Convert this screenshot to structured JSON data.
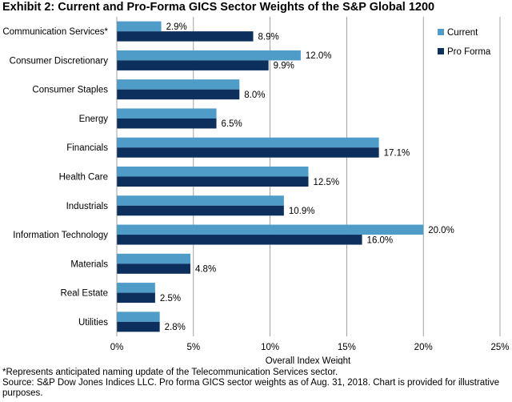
{
  "footnotes": {
    "note": "*Represents anticipated naming update of the Telecommunication Services sector.",
    "source": "Source: S&P Dow Jones Indices LLC. Pro forma GICS sector weights as of Aug. 31, 2018. Chart is provided for illustrative purposes."
  },
  "chart_data": {
    "type": "bar",
    "orientation": "horizontal",
    "title": "Exhibit 2: Current and Pro-Forma GICS Sector Weights of the S&P Global 1200",
    "xlabel": "Overall Index Weight",
    "ylabel": "",
    "xlim": [
      0,
      25
    ],
    "xticks": [
      0,
      5,
      10,
      15,
      20,
      25
    ],
    "xtick_labels": [
      "0%",
      "5%",
      "10%",
      "15%",
      "20%",
      "25%"
    ],
    "grid": true,
    "legend_position": "top-right",
    "categories": [
      "Communication Services*",
      "Consumer Discretionary",
      "Consumer Staples",
      "Energy",
      "Financials",
      "Health Care",
      "Industrials",
      "Information Technology",
      "Materials",
      "Real Estate",
      "Utilities"
    ],
    "series": [
      {
        "name": "Current",
        "color": "#4f9cc9",
        "values": [
          2.9,
          12.0,
          8.0,
          6.5,
          17.1,
          12.5,
          10.9,
          20.0,
          4.8,
          2.5,
          2.8
        ],
        "labels": [
          "2.9%",
          "12.0%",
          "",
          "",
          "",
          "",
          "",
          "20.0%",
          "",
          "",
          ""
        ]
      },
      {
        "name": "Pro Forma",
        "color": "#0d2f5e",
        "values": [
          8.9,
          9.9,
          8.0,
          6.5,
          17.1,
          12.5,
          10.9,
          16.0,
          4.8,
          2.5,
          2.8
        ],
        "labels": [
          "8.9%",
          "9.9%",
          "8.0%",
          "6.5%",
          "17.1%",
          "12.5%",
          "10.9%",
          "16.0%",
          "4.8%",
          "2.5%",
          "2.8%"
        ]
      }
    ]
  }
}
